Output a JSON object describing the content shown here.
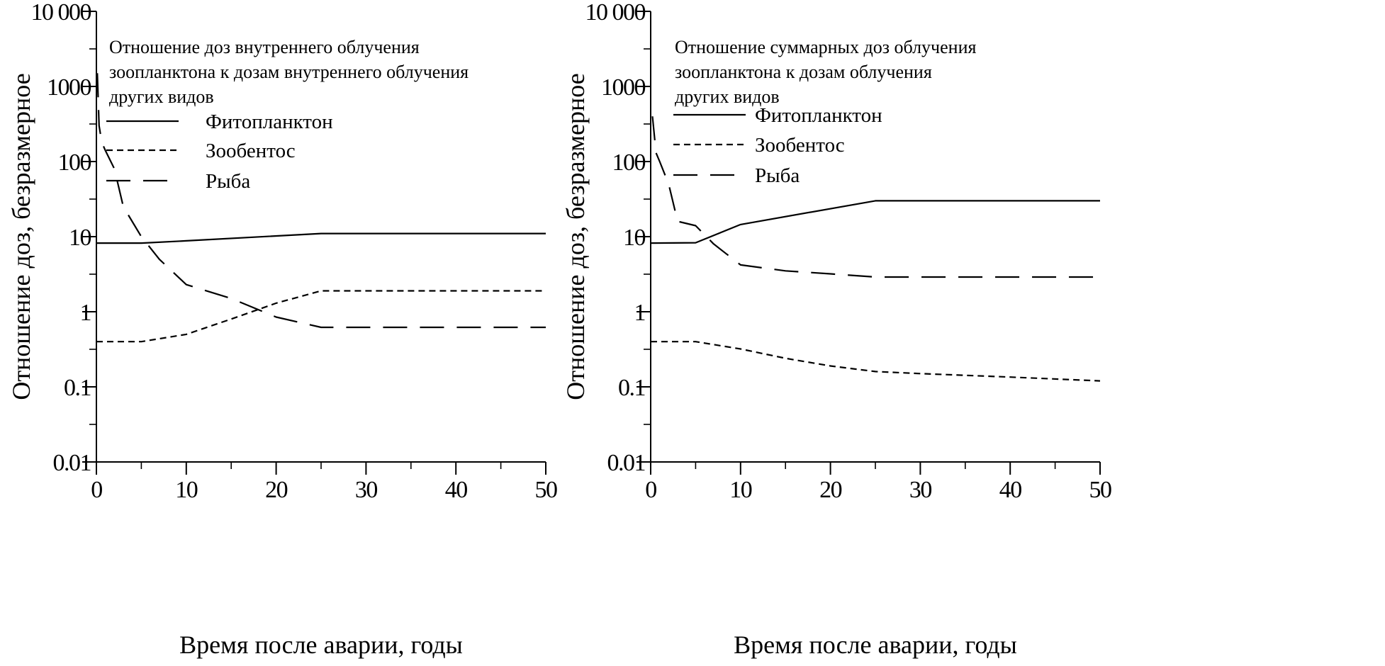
{
  "chart_data": [
    {
      "type": "line",
      "title": "Отношение доз внутреннего облучения зоопланктона к дозам внутреннего облучения других видов",
      "annotation_lines": [
        "Отношение доз внутреннего облучения",
        "зоопланктона к дозам внутреннего облучения",
        "других видов"
      ],
      "xlabel": "Время после аварии, годы",
      "ylabel": "Отношение доз, безразмерное",
      "xlim": [
        0,
        50
      ],
      "ylim": [
        0.01,
        10000
      ],
      "yscale": "log",
      "xticks": [
        "0",
        "10",
        "20",
        "30",
        "40",
        "50"
      ],
      "yticks": [
        "0.01",
        "0.1",
        "1",
        "10",
        "100",
        "1000",
        "10 000"
      ],
      "grid": false,
      "legend": "top-left",
      "series": [
        {
          "name": "Фитопланктон",
          "style": "solid",
          "x": [
            0,
            5,
            10,
            25,
            50
          ],
          "y": [
            8.2,
            8.2,
            8.8,
            11,
            11
          ]
        },
        {
          "name": "Зообентос",
          "style": "dash",
          "x": [
            0,
            5,
            10,
            15,
            20,
            25,
            50
          ],
          "y": [
            0.4,
            0.4,
            0.5,
            0.8,
            1.3,
            1.9,
            1.9
          ]
        },
        {
          "name": "Рыба",
          "style": "longdash",
          "x": [
            0.1,
            0.3,
            0.6,
            1,
            2,
            3,
            5,
            7,
            10,
            15,
            20,
            25,
            50
          ],
          "y": [
            1500,
            300,
            180,
            140,
            80,
            25,
            10,
            5,
            2.3,
            1.5,
            0.85,
            0.62,
            0.62
          ]
        }
      ]
    },
    {
      "type": "line",
      "title": "Отношение суммарных доз облучения зоопланктона к дозам облучения других видов",
      "annotation_lines": [
        "Отношение суммарных доз облучения",
        "зоопланктона к дозам облучения",
        "других видов"
      ],
      "xlabel": "Время после аварии, годы",
      "ylabel": "Отношение доз, безразмерное",
      "xlim": [
        0,
        50
      ],
      "ylim": [
        0.01,
        10000
      ],
      "yscale": "log",
      "xticks": [
        "0",
        "10",
        "20",
        "30",
        "40",
        "50"
      ],
      "yticks": [
        "0.01",
        "0.1",
        "1",
        "10",
        "100",
        "1000",
        "10 000"
      ],
      "grid": false,
      "legend": "top-left",
      "series": [
        {
          "name": "Фитопланктон",
          "style": "solid",
          "x": [
            0,
            5,
            10,
            25,
            50
          ],
          "y": [
            8.2,
            8.3,
            14.5,
            30,
            30
          ]
        },
        {
          "name": "Зообентос",
          "style": "dash",
          "x": [
            0,
            5,
            10,
            15,
            20,
            25,
            30,
            40,
            50
          ],
          "y": [
            0.4,
            0.4,
            0.32,
            0.24,
            0.19,
            0.16,
            0.15,
            0.135,
            0.12
          ]
        },
        {
          "name": "Рыба",
          "style": "longdash",
          "x": [
            0.2,
            0.6,
            1,
            2,
            3,
            5,
            7,
            10,
            15,
            20,
            25,
            50
          ],
          "y": [
            400,
            130,
            100,
            50,
            16,
            14,
            8,
            4.2,
            3.5,
            3.2,
            2.9,
            2.9
          ]
        }
      ]
    }
  ]
}
